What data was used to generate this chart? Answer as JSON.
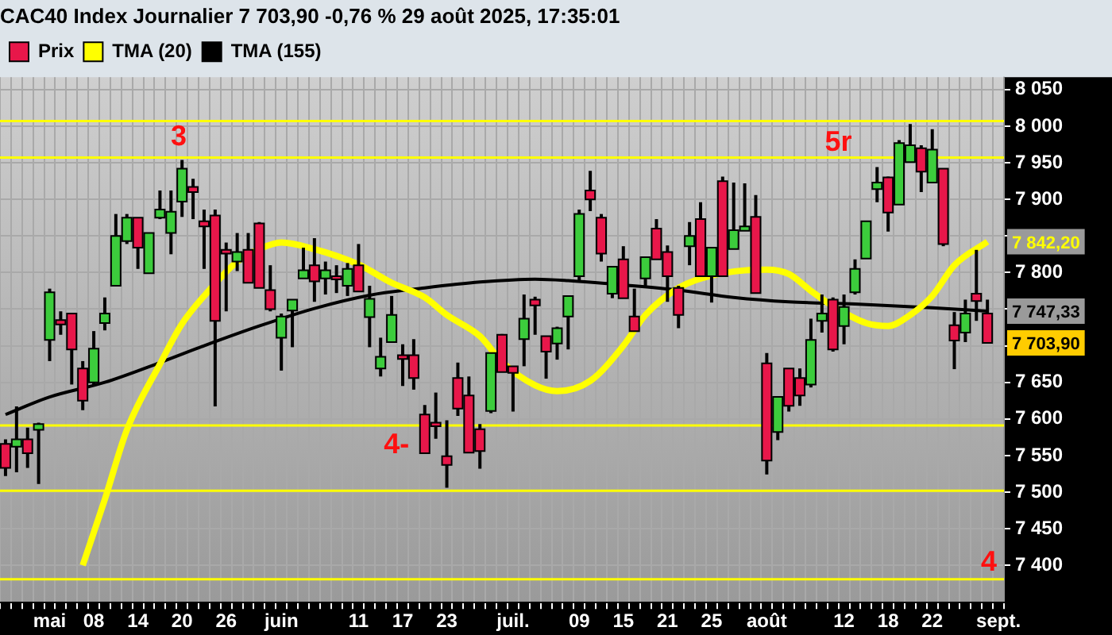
{
  "chart_data": {
    "type": "candlestick",
    "title": "CAC40 Index Journalier 7 703,90 -0,76 % 29 août 2025, 17:35:01",
    "categories": [
      null,
      null,
      null,
      null,
      "mai",
      null,
      null,
      null,
      "08",
      null,
      null,
      null,
      "14",
      null,
      null,
      null,
      "20",
      null,
      null,
      null,
      "26",
      null,
      null,
      null,
      null,
      "juin",
      null,
      null,
      null,
      null,
      null,
      null,
      "11",
      null,
      null,
      null,
      "17",
      null,
      null,
      null,
      "23",
      null,
      null,
      null,
      null,
      null,
      "juil.",
      null,
      null,
      null,
      null,
      null,
      "09",
      null,
      null,
      null,
      "15",
      null,
      null,
      null,
      "21",
      null,
      null,
      null,
      "25",
      null,
      null,
      null,
      null,
      "août",
      null,
      null,
      null,
      null,
      null,
      null,
      "12",
      null,
      null,
      null,
      "18",
      null,
      null,
      null,
      "22",
      null,
      null,
      null,
      null,
      null,
      "sept."
    ],
    "series": [
      {
        "name": "Prix",
        "type": "candlestick",
        "ohlc": [
          [
            7566,
            7572,
            7522,
            7533
          ],
          [
            7562,
            7617,
            7527,
            7572
          ],
          [
            7572,
            7588,
            7533,
            7553
          ],
          [
            7585,
            7595,
            7511,
            7593
          ],
          [
            7708,
            7778,
            7679,
            7773
          ],
          [
            7735,
            7747,
            7715,
            7729
          ],
          [
            7744,
            7744,
            7647,
            7695
          ],
          [
            7669,
            7679,
            7612,
            7625
          ],
          [
            7650,
            7720,
            7645,
            7696
          ],
          [
            7731,
            7766,
            7721,
            7744
          ],
          [
            7782,
            7880,
            7782,
            7850
          ],
          [
            7843,
            7880,
            7839,
            7875
          ],
          [
            7875,
            7875,
            7805,
            7834
          ],
          [
            7799,
            7854,
            7799,
            7854
          ],
          [
            7875,
            7912,
            7873,
            7886
          ],
          [
            7854,
            7912,
            7825,
            7883
          ],
          [
            7897,
            7954,
            7876,
            7942
          ],
          [
            7917,
            7928,
            7873,
            7910
          ],
          [
            7870,
            7886,
            7805,
            7863
          ],
          [
            7878,
            7886,
            7617,
            7734
          ],
          [
            7831,
            7841,
            7747,
            7826
          ],
          [
            7815,
            7854,
            7802,
            7828
          ],
          [
            7831,
            7854,
            7786,
            7786
          ],
          [
            7867,
            7869,
            7779,
            7779
          ],
          [
            7776,
            7810,
            7747,
            7750
          ],
          [
            7711,
            7744,
            7666,
            7740
          ],
          [
            7748,
            7763,
            7698,
            7763
          ],
          [
            7792,
            7834,
            7792,
            7803
          ],
          [
            7810,
            7847,
            7760,
            7788
          ],
          [
            7792,
            7815,
            7770,
            7803
          ],
          [
            7795,
            7810,
            7772,
            7791
          ],
          [
            7782,
            7813,
            7768,
            7805
          ],
          [
            7810,
            7839,
            7774,
            7774
          ],
          [
            7739,
            7782,
            7698,
            7764
          ],
          [
            7669,
            7711,
            7658,
            7685
          ],
          [
            7705,
            7768,
            7705,
            7742
          ],
          [
            7687,
            7702,
            7645,
            7682
          ],
          [
            7687,
            7709,
            7640,
            7656
          ],
          [
            7606,
            7619,
            7553,
            7553
          ],
          [
            7595,
            7636,
            7573,
            7590
          ],
          [
            7549,
            7598,
            7506,
            7537
          ],
          [
            7656,
            7677,
            7604,
            7614
          ],
          [
            7632,
            7658,
            7554,
            7554
          ],
          [
            7586,
            7593,
            7532,
            7556
          ],
          [
            7611,
            7690,
            7608,
            7690
          ],
          [
            7715,
            7716,
            7664,
            7664
          ],
          [
            7672,
            7672,
            7610,
            7663
          ],
          [
            7709,
            7770,
            7672,
            7737
          ],
          [
            7763,
            7767,
            7715,
            7755
          ],
          [
            7713,
            7713,
            7655,
            7692
          ],
          [
            7703,
            7726,
            7681,
            7724
          ],
          [
            7740,
            7768,
            7695,
            7768
          ],
          [
            7795,
            7886,
            7789,
            7880
          ],
          [
            7912,
            7939,
            7884,
            7900
          ],
          [
            7875,
            7880,
            7815,
            7826
          ],
          [
            7771,
            7808,
            7765,
            7808
          ],
          [
            7818,
            7836,
            7765,
            7765
          ],
          [
            7740,
            7778,
            7720,
            7720
          ],
          [
            7792,
            7821,
            7782,
            7821
          ],
          [
            7860,
            7873,
            7818,
            7818
          ],
          [
            7828,
            7837,
            7760,
            7795
          ],
          [
            7779,
            7782,
            7724,
            7742
          ],
          [
            7836,
            7869,
            7810,
            7850
          ],
          [
            7873,
            7896,
            7795,
            7795
          ],
          [
            7795,
            7834,
            7759,
            7834
          ],
          [
            7925,
            7931,
            7795,
            7795
          ],
          [
            7832,
            7923,
            7832,
            7858
          ],
          [
            7857,
            7922,
            7857,
            7863
          ],
          [
            7876,
            7906,
            7772,
            7772
          ],
          [
            7676,
            7690,
            7524,
            7543
          ],
          [
            7582,
            7630,
            7571,
            7630
          ],
          [
            7669,
            7669,
            7610,
            7618
          ],
          [
            7656,
            7669,
            7618,
            7632
          ],
          [
            7647,
            7737,
            7643,
            7708
          ],
          [
            7734,
            7770,
            7718,
            7744
          ],
          [
            7763,
            7766,
            7692,
            7695
          ],
          [
            7727,
            7770,
            7702,
            7753
          ],
          [
            7773,
            7818,
            7770,
            7805
          ],
          [
            7819,
            7870,
            7819,
            7870
          ],
          [
            7914,
            7944,
            7896,
            7923
          ],
          [
            7930,
            7931,
            7856,
            7882
          ],
          [
            7893,
            7981,
            7893,
            7977
          ],
          [
            7951,
            8003,
            7951,
            7974
          ],
          [
            7970,
            7974,
            7910,
            7938
          ],
          [
            7923,
            7996,
            7923,
            7968
          ],
          [
            7942,
            7942,
            7836,
            7839
          ],
          [
            7728,
            7746,
            7668,
            7707
          ],
          [
            7718,
            7763,
            7705,
            7744
          ],
          [
            7771,
            7831,
            7734,
            7761
          ],
          [
            7744,
            7763,
            7703.9,
            7703.9
          ],
          null
        ],
        "colors": [
          "#e8174a",
          "#3ccc3c",
          "#e8174a",
          "#3ccc3c",
          "#3ccc3c",
          "#e8174a",
          "#e8174a",
          "#e8174a",
          "#3ccc3c",
          "#3ccc3c",
          "#3ccc3c",
          "#3ccc3c",
          "#e8174a",
          "#3ccc3c",
          "#3ccc3c",
          "#3ccc3c",
          "#3ccc3c",
          "#e8174a",
          "#e8174a",
          "#e8174a",
          "#e8174a",
          "#3ccc3c",
          "#e8174a",
          "#e8174a",
          "#e8174a",
          "#3ccc3c",
          "#3ccc3c",
          "#3ccc3c",
          "#e8174a",
          "#3ccc3c",
          "#e8174a",
          "#3ccc3c",
          "#e8174a",
          "#3ccc3c",
          "#3ccc3c",
          "#3ccc3c",
          "#e8174a",
          "#e8174a",
          "#e8174a",
          "#e8174a",
          "#e8174a",
          "#e8174a",
          "#e8174a",
          "#e8174a",
          "#3ccc3c",
          "#e8174a",
          "#e8174a",
          "#3ccc3c",
          "#e8174a",
          "#e8174a",
          "#3ccc3c",
          "#3ccc3c",
          "#3ccc3c",
          "#e8174a",
          "#e8174a",
          "#3ccc3c",
          "#e8174a",
          "#e8174a",
          "#3ccc3c",
          "#e8174a",
          "#e8174a",
          "#e8174a",
          "#3ccc3c",
          "#e8174a",
          "#3ccc3c",
          "#e8174a",
          "#3ccc3c",
          "#3ccc3c",
          "#e8174a",
          "#e8174a",
          "#3ccc3c",
          "#e8174a",
          "#e8174a",
          "#3ccc3c",
          "#3ccc3c",
          "#e8174a",
          "#3ccc3c",
          "#3ccc3c",
          "#3ccc3c",
          "#3ccc3c",
          "#e8174a",
          "#3ccc3c",
          "#3ccc3c",
          "#e8174a",
          "#3ccc3c",
          "#e8174a",
          "#e8174a",
          "#3ccc3c",
          "#e8174a",
          "#e8174a",
          null
        ],
        "value_labels": [
          null,
          null,
          null,
          null,
          null,
          null,
          null,
          null,
          null,
          null,
          null,
          null,
          null,
          null,
          null,
          null,
          null,
          null,
          null,
          null,
          null,
          null,
          null,
          null,
          null,
          null,
          null,
          null,
          null,
          null,
          null,
          null,
          null,
          null,
          null,
          null,
          null,
          null,
          null,
          null,
          null,
          null,
          null,
          null,
          null,
          null,
          null,
          null,
          null,
          null,
          null,
          null,
          null,
          null,
          null,
          null,
          null,
          null,
          null,
          null,
          null,
          null,
          null,
          null,
          null,
          null,
          null,
          null,
          null,
          null,
          null,
          null,
          null,
          null,
          null,
          null,
          null,
          null,
          null,
          null,
          null,
          null,
          null,
          null,
          null,
          null,
          null,
          null,
          null,
          "7 703,90",
          null
        ]
      },
      {
        "name": "TMA (20)",
        "type": "line",
        "color": "#ffff00",
        "values": [
          null,
          null,
          null,
          null,
          null,
          null,
          null,
          7400,
          null,
          7490,
          null,
          7585,
          null,
          null,
          7675,
          null,
          7730,
          null,
          7768,
          null,
          null,
          7815,
          null,
          7832,
          null,
          7841,
          null,
          null,
          7832,
          null,
          null,
          null,
          7811,
          null,
          null,
          7786,
          null,
          null,
          7766,
          null,
          7742,
          null,
          null,
          7713,
          null,
          7678,
          null,
          null,
          7646,
          null,
          7638,
          null,
          null,
          7652,
          null,
          null,
          7700,
          null,
          7742,
          null,
          null,
          7779,
          null,
          null,
          7796,
          null,
          null,
          7803,
          null,
          7804,
          null,
          7798,
          null,
          7775,
          null,
          7754,
          null,
          null,
          7731,
          null,
          7727,
          null,
          7742,
          null,
          7768,
          null,
          7810,
          null,
          null,
          7842.2,
          null
        ],
        "value_labels": [
          null,
          null,
          null,
          null,
          null,
          null,
          null,
          null,
          null,
          null,
          null,
          null,
          null,
          null,
          null,
          null,
          null,
          null,
          null,
          null,
          null,
          null,
          null,
          null,
          null,
          null,
          null,
          null,
          null,
          null,
          null,
          null,
          null,
          null,
          null,
          null,
          null,
          null,
          null,
          null,
          null,
          null,
          null,
          null,
          null,
          null,
          null,
          null,
          null,
          null,
          null,
          null,
          null,
          null,
          null,
          null,
          null,
          null,
          null,
          null,
          null,
          null,
          null,
          null,
          null,
          null,
          null,
          null,
          null,
          null,
          null,
          null,
          null,
          null,
          null,
          null,
          null,
          null,
          null,
          null,
          null,
          null,
          null,
          null,
          null,
          null,
          null,
          null,
          null,
          "7 842,20",
          null
        ]
      },
      {
        "name": "TMA (155)",
        "type": "line",
        "color": "#000000",
        "values": [
          7606,
          null,
          null,
          null,
          7630,
          null,
          null,
          null,
          null,
          7650,
          null,
          null,
          null,
          null,
          7677,
          null,
          null,
          null,
          7700,
          null,
          null,
          null,
          null,
          7727,
          null,
          null,
          null,
          null,
          7751,
          null,
          null,
          null,
          null,
          7769,
          null,
          null,
          null,
          null,
          7779,
          null,
          null,
          null,
          null,
          7787,
          null,
          null,
          null,
          null,
          7791,
          null,
          null,
          7789,
          null,
          null,
          null,
          null,
          7783,
          null,
          null,
          null,
          null,
          7776,
          null,
          null,
          null,
          null,
          7766,
          null,
          null,
          null,
          null,
          7760,
          null,
          null,
          null,
          null,
          null,
          7757,
          null,
          null,
          null,
          null,
          null,
          null,
          7752,
          null,
          null,
          null,
          null,
          7747.33,
          null
        ],
        "value_labels": [
          null,
          null,
          null,
          null,
          null,
          null,
          null,
          null,
          null,
          null,
          null,
          null,
          null,
          null,
          null,
          null,
          null,
          null,
          null,
          null,
          null,
          null,
          null,
          null,
          null,
          null,
          null,
          null,
          null,
          null,
          null,
          null,
          null,
          null,
          null,
          null,
          null,
          null,
          null,
          null,
          null,
          null,
          null,
          null,
          null,
          null,
          null,
          null,
          null,
          null,
          null,
          null,
          null,
          null,
          null,
          null,
          null,
          null,
          null,
          null,
          null,
          null,
          null,
          null,
          null,
          null,
          null,
          null,
          null,
          null,
          null,
          null,
          null,
          null,
          null,
          null,
          null,
          null,
          null,
          null,
          null,
          null,
          null,
          null,
          null,
          null,
          null,
          null,
          null,
          "7 747,33",
          null
        ]
      }
    ],
    "ylim": [
      7349,
      8067
    ],
    "yticks": [
      {
        "value": 7400,
        "label": "7 400"
      },
      {
        "value": 7450,
        "label": "7 450"
      },
      {
        "value": 7500,
        "label": "7 500"
      },
      {
        "value": 7550,
        "label": "7 550"
      },
      {
        "value": 7600,
        "label": "7 600"
      },
      {
        "value": 7650,
        "label": "7 650"
      },
      {
        "value": 7700,
        "label": null
      },
      {
        "value": 7750,
        "label": null
      },
      {
        "value": 7800,
        "label": "7 800"
      },
      {
        "value": 7850,
        "label": null
      },
      {
        "value": 7900,
        "label": "7 900"
      },
      {
        "value": 7950,
        "label": "7 950"
      },
      {
        "value": 8000,
        "label": "8 000"
      },
      {
        "value": 8050,
        "label": "8 050"
      }
    ],
    "ref_lines": [
      {
        "axis": "y",
        "value": 8007,
        "color": "#ffff00"
      },
      {
        "axis": "y",
        "value": 7957,
        "color": "#ffff00"
      },
      {
        "axis": "y",
        "value": 7591,
        "color": "#ffff00"
      },
      {
        "axis": "y",
        "value": 7502,
        "color": "#ffff00"
      },
      {
        "axis": "y",
        "value": 7381,
        "color": "#ffff00"
      }
    ],
    "annotations": [
      "3",
      "4-",
      "5r",
      "4"
    ],
    "grid": true,
    "legend": "top left",
    "marker": "none"
  }
}
